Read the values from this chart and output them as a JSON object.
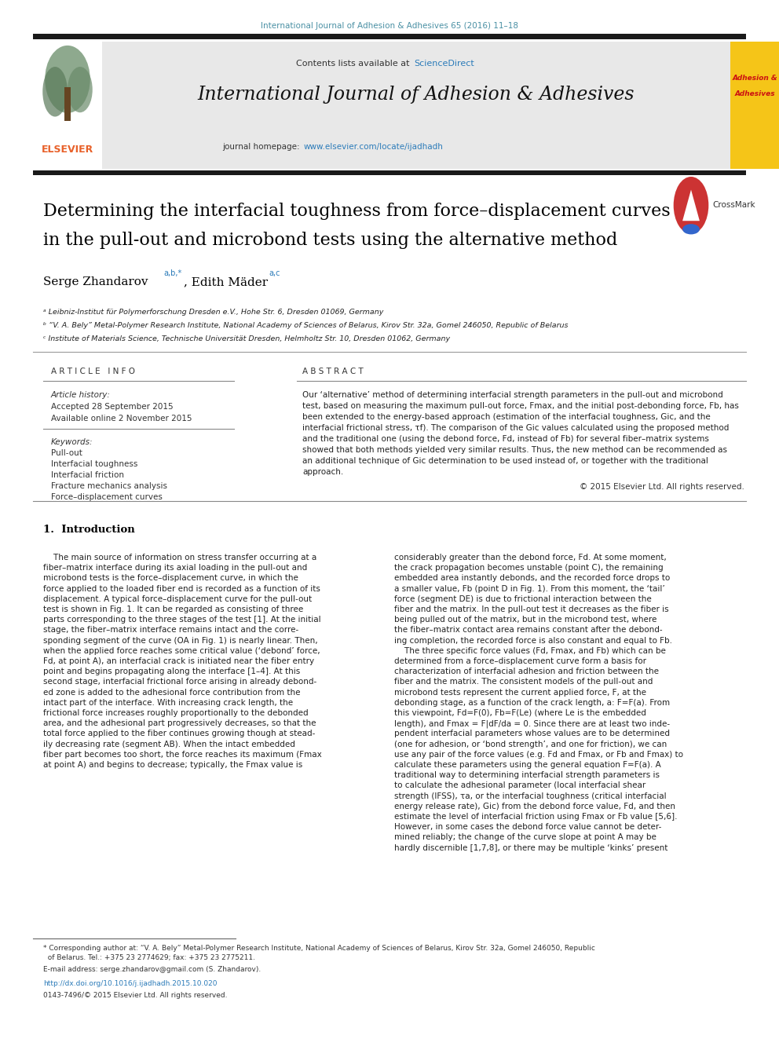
{
  "fig_width": 9.92,
  "fig_height": 13.23,
  "bg_color": "#ffffff",
  "journal_ref": "International Journal of Adhesion & Adhesives 65 (2016) 11–18",
  "journal_ref_color": "#4a90a4",
  "header_bg": "#e8e8e8",
  "header_text1": "Contents lists available at ",
  "header_sciencedirect": "ScienceDirect",
  "header_sciencedirect_color": "#2b7bb9",
  "journal_title": "International Journal of Adhesion & Adhesives",
  "journal_homepage_pre": "journal homepage: ",
  "journal_homepage_url": "www.elsevier.com/locate/ijadhadh",
  "journal_homepage_url_color": "#2b7bb9",
  "paper_title_line1": "Determining the interfacial toughness from force–displacement curves",
  "paper_title_line2": "in the pull-out and microbond tests using the alternative method",
  "paper_title_color": "#000000",
  "author1": "Serge Zhandarov",
  "author1_sup": "a,b,*",
  "author2": ", Edith Mäder",
  "author2_sup": "a,c",
  "author_color": "#000000",
  "affil_a": "ᵃ Leibniz-Institut für Polymerforschung Dresden e.V., Hohe Str. 6, Dresden 01069, Germany",
  "affil_b": "ᵇ “V. A. Bely” Metal-Polymer Research Institute, National Academy of Sciences of Belarus, Kirov Str. 32a, Gomel 246050, Republic of Belarus",
  "affil_c": "ᶜ Institute of Materials Science, Technische Universität Dresden, Helmholtz Str. 10, Dresden 01062, Germany",
  "article_info_header": "A R T I C L E   I N F O",
  "abstract_header": "A B S T R A C T",
  "article_history_label": "Article history:",
  "accepted_date": "Accepted 28 September 2015",
  "available_date": "Available online 2 November 2015",
  "keywords_label": "Keywords:",
  "keywords": [
    "Pull-out",
    "Interfacial toughness",
    "Interfacial friction",
    "Fracture mechanics analysis",
    "Force–displacement curves"
  ],
  "copyright": "© 2015 Elsevier Ltd. All rights reserved.",
  "section1_title": "1.  Introduction",
  "abstract_lines": [
    "Our ‘alternative’ method of determining interfacial strength parameters in the pull-out and microbond",
    "test, based on measuring the maximum pull-out force, Fmax, and the initial post-debonding force, Fb, has",
    "been extended to the energy-based approach (estimation of the interfacial toughness, Gic, and the",
    "interfacial frictional stress, τf). The comparison of the Gic values calculated using the proposed method",
    "and the traditional one (using the debond force, Fd, instead of Fb) for several fiber–matrix systems",
    "showed that both methods yielded very similar results. Thus, the new method can be recommended as",
    "an additional technique of Gic determination to be used instead of, or together with the traditional",
    "approach."
  ],
  "col1_lines": [
    "    The main source of information on stress transfer occurring at a",
    "fiber–matrix interface during its axial loading in the pull-out and",
    "microbond tests is the force–displacement curve, in which the",
    "force applied to the loaded fiber end is recorded as a function of its",
    "displacement. A typical force–displacement curve for the pull-out",
    "test is shown in Fig. 1. It can be regarded as consisting of three",
    "parts corresponding to the three stages of the test [1]. At the initial",
    "stage, the fiber–matrix interface remains intact and the corre-",
    "sponding segment of the curve (OA in Fig. 1) is nearly linear. Then,",
    "when the applied force reaches some critical value (‘debond’ force,",
    "Fd, at point A), an interfacial crack is initiated near the fiber entry",
    "point and begins propagating along the interface [1–4]. At this",
    "second stage, interfacial frictional force arising in already debond-",
    "ed zone is added to the adhesional force contribution from the",
    "intact part of the interface. With increasing crack length, the",
    "frictional force increases roughly proportionally to the debonded",
    "area, and the adhesional part progressively decreases, so that the",
    "total force applied to the fiber continues growing though at stead-",
    "ily decreasing rate (segment AB). When the intact embedded",
    "fiber part becomes too short, the force reaches its maximum (Fmax",
    "at point A) and begins to decrease; typically, the Fmax value is"
  ],
  "col2_lines": [
    "considerably greater than the debond force, Fd. At some moment,",
    "the crack propagation becomes unstable (point C), the remaining",
    "embedded area instantly debonds, and the recorded force drops to",
    "a smaller value, Fb (point D in Fig. 1). From this moment, the ‘tail’",
    "force (segment DE) is due to frictional interaction between the",
    "fiber and the matrix. In the pull-out test it decreases as the fiber is",
    "being pulled out of the matrix, but in the microbond test, where",
    "the fiber–matrix contact area remains constant after the debond-",
    "ing completion, the recorded force is also constant and equal to Fb.",
    "    The three specific force values (Fd, Fmax, and Fb) which can be",
    "determined from a force–displacement curve form a basis for",
    "characterization of interfacial adhesion and friction between the",
    "fiber and the matrix. The consistent models of the pull-out and",
    "microbond tests represent the current applied force, F, at the",
    "debonding stage, as a function of the crack length, a: F=F(a). From",
    "this viewpoint, Fd=F(0), Fb=F(Le) (where Le is the embedded",
    "length), and Fmax = F|dF/da = 0. Since there are at least two inde-",
    "pendent interfacial parameters whose values are to be determined",
    "(one for adhesion, or ‘bond strength’, and one for friction), we can",
    "use any pair of the force values (e.g. Fd and Fmax, or Fb and Fmax) to",
    "calculate these parameters using the general equation F=F(a). A",
    "traditional way to determining interfacial strength parameters is",
    "to calculate the adhesional parameter (local interfacial shear",
    "strength (IFSS), τa, or the interfacial toughness (critical interfacial",
    "energy release rate), Gic) from the debond force value, Fd, and then",
    "estimate the level of interfacial friction using Fmax or Fb value [5,6].",
    "However, in some cases the debond force value cannot be deter-",
    "mined reliably; the change of the curve slope at point A may be",
    "hardly discernible [1,7,8], or there may be multiple ‘kinks’ present"
  ],
  "footnote1": "* Corresponding author at: “V. A. Bely” Metal-Polymer Research Institute, National Academy of Sciences of Belarus, Kirov Str. 32a, Gomel 246050, Republic of Belarus. Tel.: +375 23 2774629; fax: +375 23 2775211.",
  "footnote2": "E-mail address: serge.zhandarov@gmail.com (S. Zhandarov).",
  "footnote_doi": "http://dx.doi.org/10.1016/j.ijadhadh.2015.10.020",
  "footnote_issn": "0143-7496/© 2015 Elsevier Ltd. All rights reserved.",
  "link_color": "#2b7bb9",
  "thick_bar_color": "#1a1a1a"
}
